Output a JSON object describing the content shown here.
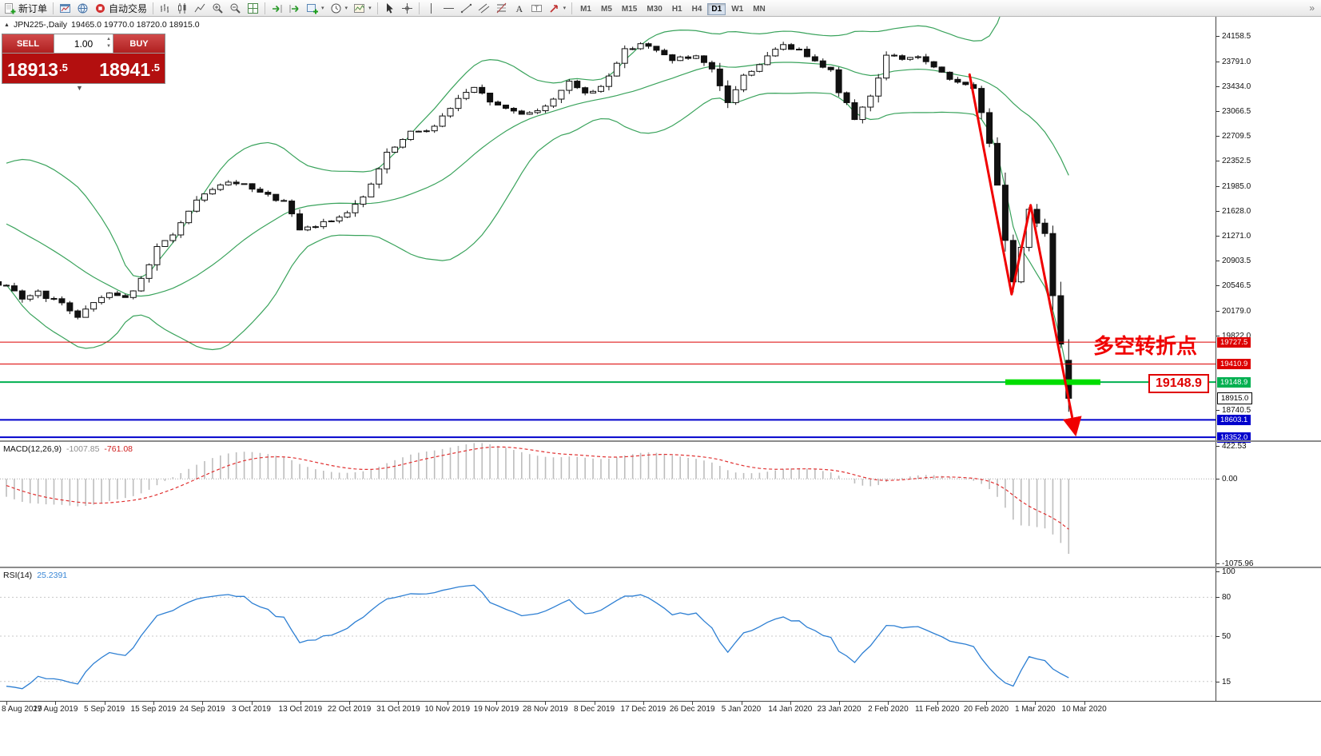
{
  "toolbar": {
    "new_order_label": "新订单",
    "autotrading_label": "自动交易",
    "timeframes": [
      {
        "label": "M1"
      },
      {
        "label": "M5"
      },
      {
        "label": "M15"
      },
      {
        "label": "M30"
      },
      {
        "label": "H1"
      },
      {
        "label": "H4"
      },
      {
        "label": "D1",
        "active": true
      },
      {
        "label": "W1"
      },
      {
        "label": "MN"
      }
    ],
    "overflow_glyph": "»"
  },
  "chart_header": {
    "symbol_text": "JPN225-,Daily",
    "ohlc_text": "19465.0 19770.0 18720.0 18915.0"
  },
  "trade_panel": {
    "sell_label": "SELL",
    "buy_label": "BUY",
    "volume": "1.00",
    "bid_main": "18913",
    "bid_sup": ".5",
    "ask_main": "18941",
    "ask_sup": ".5"
  },
  "chart_data": {
    "type": "candlestick",
    "symbol": "JPN225-",
    "timeframe": "Daily",
    "ohlc_current": {
      "open": 19465.0,
      "high": 19770.0,
      "low": 18720.0,
      "close": 18915.0
    },
    "bid": 18913.5,
    "ask": 18941.5,
    "y_axis_ticks": [
      24158.5,
      23791.0,
      23434.0,
      23066.5,
      22709.5,
      22352.5,
      21985.0,
      21628.0,
      21271.0,
      20903.5,
      20546.5,
      20179.0,
      19822.0,
      18740.5
    ],
    "price_lines": [
      {
        "price": 19727.5,
        "color": "#dd0000",
        "width": 1
      },
      {
        "price": 19410.9,
        "color": "#dd0000",
        "width": 1
      },
      {
        "price": 19148.9,
        "color": "#00b050",
        "width": 2
      },
      {
        "price": 18603.1,
        "color": "#0000cc",
        "width": 2
      },
      {
        "price": 18352.0,
        "color": "#0000cc",
        "width": 2
      }
    ],
    "current_price_label": 18915.0,
    "close_keypoints": [
      [
        -40,
        21350
      ],
      [
        -30,
        21500
      ],
      [
        -20,
        21620
      ],
      [
        -14,
        21730
      ],
      [
        -10,
        21720
      ],
      [
        -7,
        21650
      ],
      [
        -5,
        21540
      ],
      [
        -4,
        21090
      ],
      [
        -3,
        20720
      ],
      [
        -2,
        20590
      ],
      [
        -1,
        20520
      ],
      [
        0,
        20520
      ],
      [
        2,
        20360
      ],
      [
        4,
        20450
      ],
      [
        7,
        20270
      ],
      [
        9,
        20110
      ],
      [
        11,
        20300
      ],
      [
        13,
        20460
      ],
      [
        15,
        20370
      ],
      [
        17,
        20620
      ],
      [
        19,
        21080
      ],
      [
        21,
        21300
      ],
      [
        24,
        21750
      ],
      [
        26,
        21960
      ],
      [
        29,
        22040
      ],
      [
        32,
        21880
      ],
      [
        35,
        21760
      ],
      [
        37,
        21340
      ],
      [
        39,
        21410
      ],
      [
        42,
        21550
      ],
      [
        45,
        21800
      ],
      [
        48,
        22450
      ],
      [
        51,
        22750
      ],
      [
        54,
        22850
      ],
      [
        57,
        23250
      ],
      [
        59,
        23390
      ],
      [
        62,
        23140
      ],
      [
        65,
        23040
      ],
      [
        68,
        23120
      ],
      [
        71,
        23520
      ],
      [
        73,
        23300
      ],
      [
        75,
        23430
      ],
      [
        78,
        23950
      ],
      [
        80,
        24060
      ],
      [
        82,
        23930
      ],
      [
        84,
        23830
      ],
      [
        87,
        23840
      ],
      [
        89,
        23650
      ],
      [
        91,
        23200
      ],
      [
        93,
        23575
      ],
      [
        96,
        23850
      ],
      [
        98,
        24040
      ],
      [
        100,
        23940
      ],
      [
        102,
        23830
      ],
      [
        104,
        23650
      ],
      [
        105,
        23350
      ],
      [
        107,
        22980
      ],
      [
        109,
        23280
      ],
      [
        111,
        23870
      ],
      [
        113,
        23830
      ],
      [
        115,
        23860
      ],
      [
        117,
        23690
      ],
      [
        119,
        23520
      ],
      [
        121,
        23480
      ],
      [
        122,
        23400
      ],
      [
        123,
        23050
      ],
      [
        124,
        22605
      ],
      [
        125,
        22000
      ],
      [
        126,
        21200
      ],
      [
        127,
        20600
      ],
      [
        128,
        21100
      ],
      [
        129,
        21650
      ],
      [
        130,
        21450
      ],
      [
        131,
        21300
      ],
      [
        132,
        20400
      ],
      [
        133,
        19700
      ],
      [
        134,
        18915
      ]
    ],
    "bollinger": {
      "period": 20,
      "deviation": 2,
      "color": "#3aa35c"
    },
    "macd": {
      "label": "MACD(12,26,9)",
      "value_main": "-1007.85",
      "value_signal": "-761.08",
      "axis_ticks": [
        "422.53",
        "0.00",
        "-1075.96"
      ],
      "histogram_color": "#bdbdbd",
      "signal_color": "#e03030"
    },
    "rsi": {
      "label": "RSI(14)",
      "value": "25.2391",
      "axis_ticks": [
        100,
        80,
        50,
        15
      ],
      "levels": [
        80,
        50,
        15
      ],
      "line_color": "#2d7fd3"
    },
    "time_labels": [
      "8 Aug 2019",
      "27 Aug 2019",
      "5 Sep 2019",
      "15 Sep 2019",
      "24 Sep 2019",
      "3 Oct 2019",
      "13 Oct 2019",
      "22 Oct 2019",
      "31 Oct 2019",
      "10 Nov 2019",
      "19 Nov 2019",
      "28 Nov 2019",
      "8 Dec 2019",
      "17 Dec 2019",
      "26 Dec 2019",
      "5 Jan 2020",
      "14 Jan 2020",
      "23 Jan 2020",
      "2 Feb 2020",
      "11 Feb 2020",
      "20 Feb 2020",
      "1 Mar 2020",
      "10 Mar 2020"
    ],
    "annotations": {
      "turning_point_text": "多空转折点",
      "turning_point_color": "#f00000",
      "price_tag": "19148.9",
      "green_band": {
        "price": 19148.9,
        "from_index": 126,
        "to_index": 138,
        "color": "#00dd00"
      },
      "trend_arrow": {
        "color": "#f00000",
        "points": [
          [
            121.5,
            23600
          ],
          [
            126.8,
            20420
          ],
          [
            129.2,
            21710
          ],
          [
            134.8,
            18430
          ]
        ]
      }
    }
  }
}
